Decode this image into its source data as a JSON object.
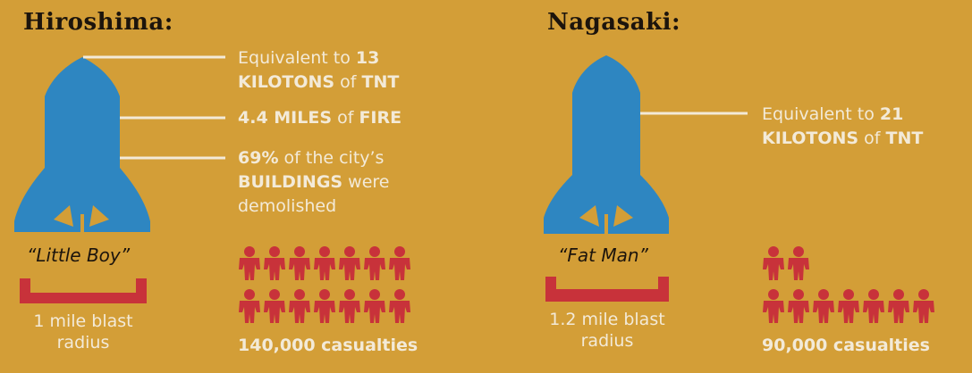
{
  "colors": {
    "background": "#D39E37",
    "bomb": "#2E86C1",
    "casualty": "#C8323A",
    "text_light": "#F3EAD8",
    "text_dark": "#1C140C"
  },
  "hiroshima": {
    "title": "Hiroshima:",
    "nickname": "“Little Boy”",
    "fact1": {
      "pre": "Equivalent to ",
      "num": "13",
      "strong": "KILOTONS",
      "mid": " of ",
      "unit": "TNT"
    },
    "fact2": {
      "num": "4.4 MILES",
      "mid": " of ",
      "strong": "FIRE"
    },
    "fact3": {
      "pct": "69%",
      "line1_rest": " of the city’s",
      "strong": "BUILDINGS",
      "line2_rest": " were",
      "line3": "demolished"
    },
    "radius": {
      "line1": "1 mile blast",
      "line2": "radius"
    },
    "casualties": "140,000 casualties",
    "figure_rows": [
      7,
      7
    ]
  },
  "nagasaki": {
    "title": "Nagasaki:",
    "nickname": "“Fat Man”",
    "fact1": {
      "pre": "Equivalent to ",
      "num": "21",
      "strong": "KILOTONS",
      "mid": " of ",
      "unit": "TNT"
    },
    "radius": {
      "line1": "1.2 mile blast",
      "line2": "radius"
    },
    "casualties": "90,000 casualties",
    "figure_rows": [
      2,
      7
    ]
  }
}
